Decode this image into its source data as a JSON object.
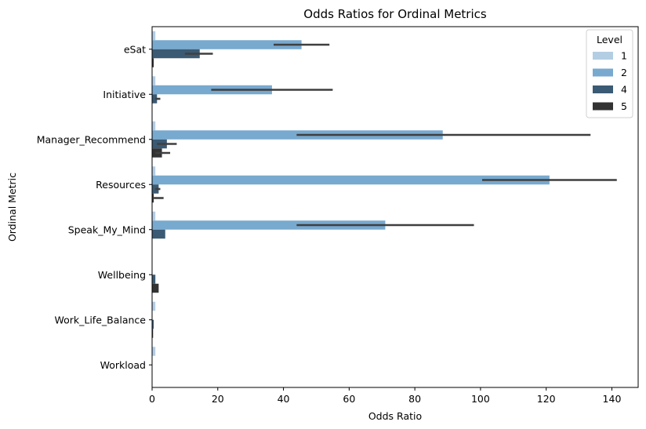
{
  "chart_data": {
    "type": "bar",
    "orientation": "horizontal",
    "title": "Odds Ratios for Ordinal Metrics",
    "xlabel": "Odds Ratio",
    "ylabel": "Ordinal Metric",
    "xlim": [
      0,
      148
    ],
    "xticks": [
      0,
      20,
      40,
      60,
      80,
      100,
      120,
      140
    ],
    "grid": false,
    "legend": {
      "title": "Level",
      "position": "top-right"
    },
    "categories": [
      "eSat",
      "Initiative",
      "Manager_Recommend",
      "Resources",
      "Speak_My_Mind",
      "Wellbeing",
      "Work_Life_Balance",
      "Workload"
    ],
    "series": [
      {
        "name": "1",
        "color": "#b3cde3",
        "values": [
          1.0,
          1.0,
          1.0,
          1.0,
          1.0,
          0.0,
          1.0,
          1.0
        ],
        "err_low": [
          null,
          null,
          null,
          null,
          null,
          null,
          null,
          null
        ],
        "err_high": [
          null,
          null,
          null,
          null,
          null,
          null,
          null,
          null
        ]
      },
      {
        "name": "2",
        "color": "#78a9cf",
        "values": [
          45.5,
          36.5,
          88.5,
          121.0,
          71.0,
          null,
          null,
          null
        ],
        "err_low": [
          37.0,
          18.0,
          44.0,
          100.5,
          44.0,
          null,
          null,
          null
        ],
        "err_high": [
          54.0,
          55.0,
          133.5,
          141.5,
          98.0,
          null,
          null,
          null
        ]
      },
      {
        "name": "4",
        "color": "#3b5a73",
        "values": [
          14.5,
          1.5,
          4.5,
          2.0,
          4.0,
          1.0,
          0.5,
          null
        ],
        "err_low": [
          10.0,
          1.0,
          1.5,
          1.0,
          null,
          null,
          null,
          null
        ],
        "err_high": [
          18.5,
          2.5,
          7.5,
          2.5,
          null,
          null,
          null,
          null
        ]
      },
      {
        "name": "5",
        "color": "#333333",
        "values": [
          0.5,
          null,
          3.0,
          0.5,
          null,
          2.0,
          0.3,
          null
        ],
        "err_low": [
          null,
          null,
          1.0,
          null,
          null,
          null,
          null,
          null
        ],
        "err_high": [
          null,
          null,
          5.5,
          3.5,
          null,
          null,
          null,
          null
        ]
      }
    ]
  }
}
